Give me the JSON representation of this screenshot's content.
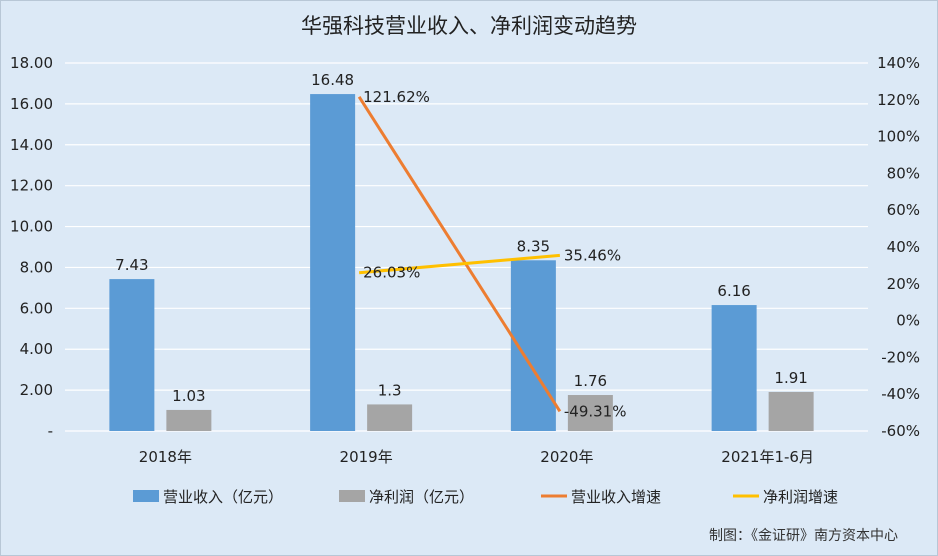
{
  "chart_data": {
    "type": "bar",
    "title": "华强科技营业收入、净利润变动趋势",
    "credit": "制图：《金证研》南方资本中心",
    "categories": [
      "2018年",
      "2019年",
      "2020年",
      "2021年1-6月"
    ],
    "ylim": [
      0,
      18
    ],
    "y_ticks": [
      "-",
      "2.00",
      "4.00",
      "6.00",
      "8.00",
      "10.00",
      "12.00",
      "14.00",
      "16.00",
      "18.00"
    ],
    "y2lim": [
      -60,
      140
    ],
    "y2_ticks": [
      "-60%",
      "-40%",
      "-20%",
      "0%",
      "20%",
      "40%",
      "60%",
      "80%",
      "100%",
      "120%",
      "140%"
    ],
    "grid": true,
    "legend_position": "bottom",
    "colors": {
      "revenue": "#5b9bd5",
      "profit": "#a5a5a5",
      "revenue_growth": "#ed7d31",
      "profit_growth": "#ffc000",
      "background": "#dce9f6",
      "grid": "#ffffff"
    },
    "series": [
      {
        "name": "营业收入（亿元）",
        "kind": "bar",
        "axis": "left",
        "values": [
          7.43,
          16.48,
          8.35,
          6.16
        ],
        "labels": [
          "7.43",
          "16.48",
          "8.35",
          "6.16"
        ]
      },
      {
        "name": "净利润（亿元）",
        "kind": "bar",
        "axis": "left",
        "values": [
          1.03,
          1.3,
          1.76,
          1.91
        ],
        "labels": [
          "1.03",
          "1.3",
          "1.76",
          "1.91"
        ]
      },
      {
        "name": "营业收入增速",
        "kind": "line",
        "axis": "right",
        "values": [
          null,
          121.62,
          -49.31,
          null
        ],
        "labels": [
          null,
          "121.62%",
          "-49.31%",
          null
        ]
      },
      {
        "name": "净利润增速",
        "kind": "line",
        "axis": "right",
        "values": [
          null,
          26.03,
          35.46,
          null
        ],
        "labels": [
          null,
          "26.03%",
          "35.46%",
          null
        ]
      }
    ]
  }
}
